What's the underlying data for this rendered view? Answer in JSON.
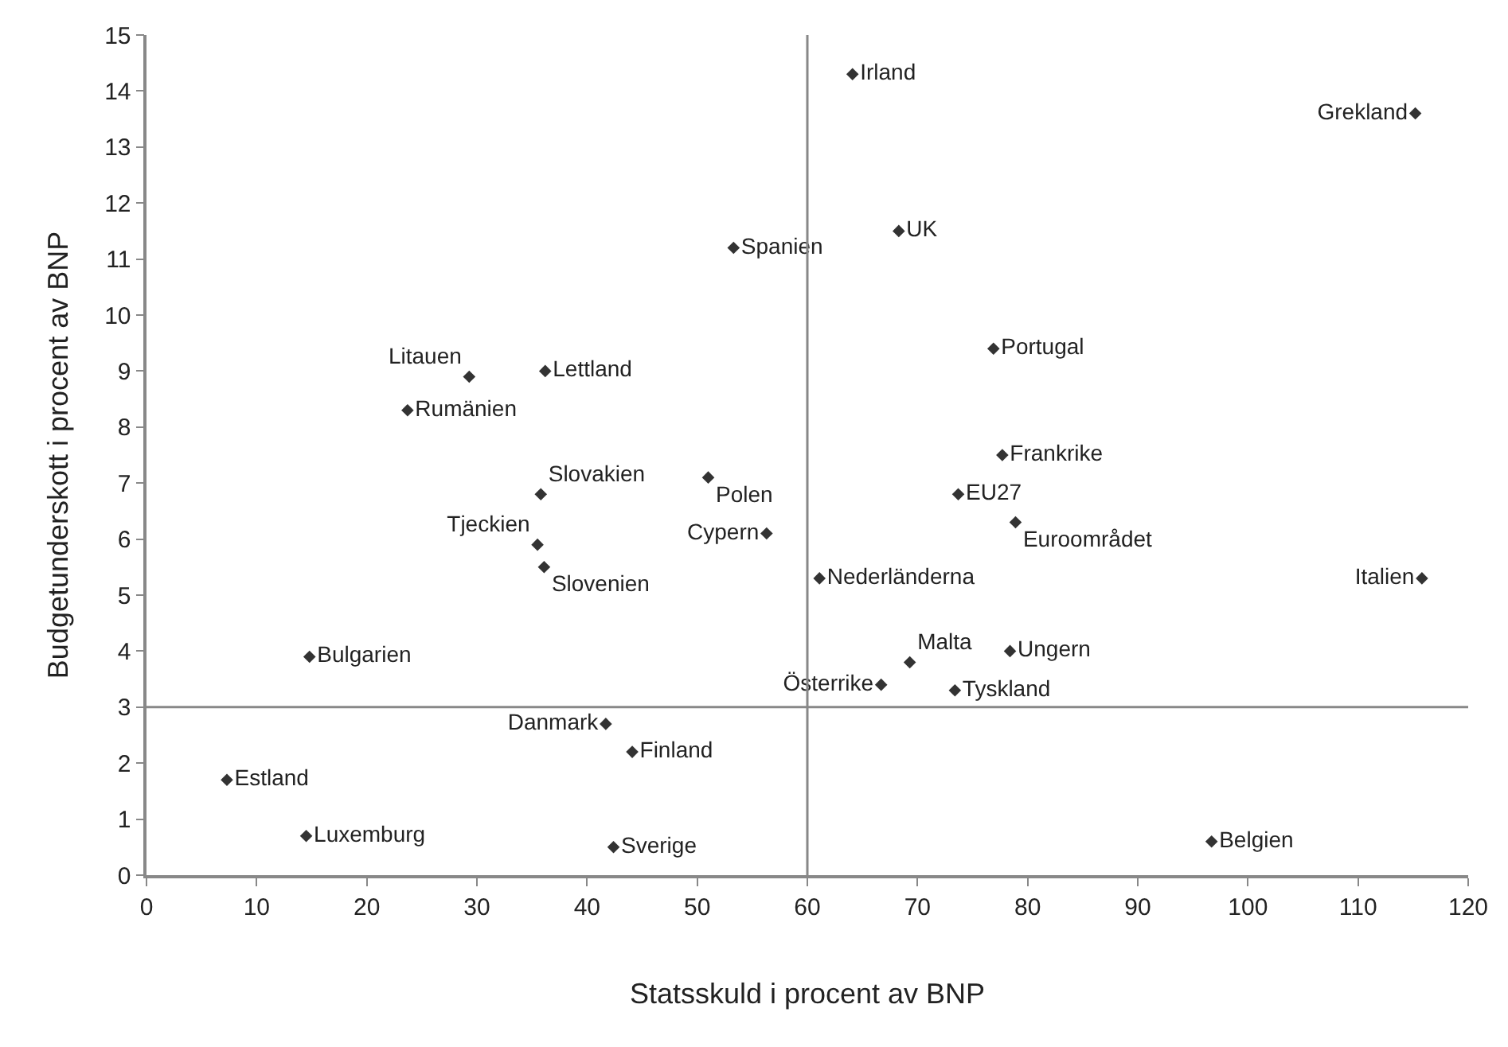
{
  "chart_data": {
    "type": "scatter",
    "xlabel": "Statsskuld i procent av BNP",
    "ylabel": "Budgetunderskott i procent av BNP",
    "xlim": [
      0,
      120
    ],
    "xticks": [
      0,
      10,
      20,
      30,
      40,
      50,
      60,
      70,
      80,
      90,
      100,
      110,
      120
    ],
    "ylim": [
      0,
      15
    ],
    "yticks": [
      0,
      1,
      2,
      3,
      4,
      5,
      6,
      7,
      8,
      9,
      10,
      11,
      12,
      13,
      14,
      15
    ],
    "grid": false,
    "legend": false,
    "marker": "diamond",
    "ref_lines": [
      {
        "axis": "x",
        "value": 60,
        "color": "#888888"
      },
      {
        "axis": "y",
        "value": 3,
        "color": "#888888"
      }
    ],
    "series": [
      {
        "name": "Irland",
        "color": "#333333",
        "x": [
          64.1
        ],
        "values": [
          14.3
        ]
      },
      {
        "name": "Grekland",
        "color": "#333333",
        "x": [
          115.2
        ],
        "values": [
          13.6
        ]
      },
      {
        "name": "Spanien",
        "color": "#333333",
        "x": [
          53.3
        ],
        "values": [
          11.2
        ]
      },
      {
        "name": "UK",
        "color": "#333333",
        "x": [
          68.3
        ],
        "values": [
          11.5
        ]
      },
      {
        "name": "Portugal",
        "color": "#333333",
        "x": [
          76.9
        ],
        "values": [
          9.4
        ]
      },
      {
        "name": "Litauen",
        "color": "#333333",
        "x": [
          29.3
        ],
        "values": [
          8.9
        ]
      },
      {
        "name": "Lettland",
        "color": "#333333",
        "x": [
          36.2
        ],
        "values": [
          9.0
        ]
      },
      {
        "name": "Rumänien",
        "color": "#333333",
        "x": [
          23.7
        ],
        "values": [
          8.3
        ]
      },
      {
        "name": "Frankrike",
        "color": "#333333",
        "x": [
          77.7
        ],
        "values": [
          7.5
        ]
      },
      {
        "name": "Slovakien",
        "color": "#333333",
        "x": [
          35.8
        ],
        "values": [
          6.8
        ]
      },
      {
        "name": "Polen",
        "color": "#333333",
        "x": [
          51.0
        ],
        "values": [
          7.1
        ]
      },
      {
        "name": "EU27",
        "color": "#333333",
        "x": [
          73.7
        ],
        "values": [
          6.8
        ]
      },
      {
        "name": "Tjeckien",
        "color": "#333333",
        "x": [
          35.5
        ],
        "values": [
          5.9
        ]
      },
      {
        "name": "Cypern",
        "color": "#333333",
        "x": [
          56.3
        ],
        "values": [
          6.1
        ]
      },
      {
        "name": "Euroområdet",
        "color": "#333333",
        "x": [
          78.9
        ],
        "values": [
          6.3
        ]
      },
      {
        "name": "Slovenien",
        "color": "#333333",
        "x": [
          36.1
        ],
        "values": [
          5.5
        ]
      },
      {
        "name": "Nederländerna",
        "color": "#333333",
        "x": [
          61.1
        ],
        "values": [
          5.3
        ]
      },
      {
        "name": "Italien",
        "color": "#333333",
        "x": [
          115.8
        ],
        "values": [
          5.3
        ]
      },
      {
        "name": "Bulgarien",
        "color": "#333333",
        "x": [
          14.8
        ],
        "values": [
          3.9
        ]
      },
      {
        "name": "Malta",
        "color": "#333333",
        "x": [
          69.3
        ],
        "values": [
          3.8
        ]
      },
      {
        "name": "Ungern",
        "color": "#333333",
        "x": [
          78.4
        ],
        "values": [
          4.0
        ]
      },
      {
        "name": "Österrike",
        "color": "#333333",
        "x": [
          66.7
        ],
        "values": [
          3.4
        ]
      },
      {
        "name": "Tyskland",
        "color": "#333333",
        "x": [
          73.4
        ],
        "values": [
          3.3
        ]
      },
      {
        "name": "Danmark",
        "color": "#333333",
        "x": [
          41.7
        ],
        "values": [
          2.7
        ]
      },
      {
        "name": "Finland",
        "color": "#333333",
        "x": [
          44.1
        ],
        "values": [
          2.2
        ]
      },
      {
        "name": "Estland",
        "color": "#333333",
        "x": [
          7.3
        ],
        "values": [
          1.7
        ]
      },
      {
        "name": "Luxemburg",
        "color": "#333333",
        "x": [
          14.5
        ],
        "values": [
          0.7
        ]
      },
      {
        "name": "Belgien",
        "color": "#333333",
        "x": [
          96.7
        ],
        "values": [
          0.6
        ]
      },
      {
        "name": "Sverige",
        "color": "#333333",
        "x": [
          42.4
        ],
        "values": [
          0.5
        ]
      }
    ]
  }
}
